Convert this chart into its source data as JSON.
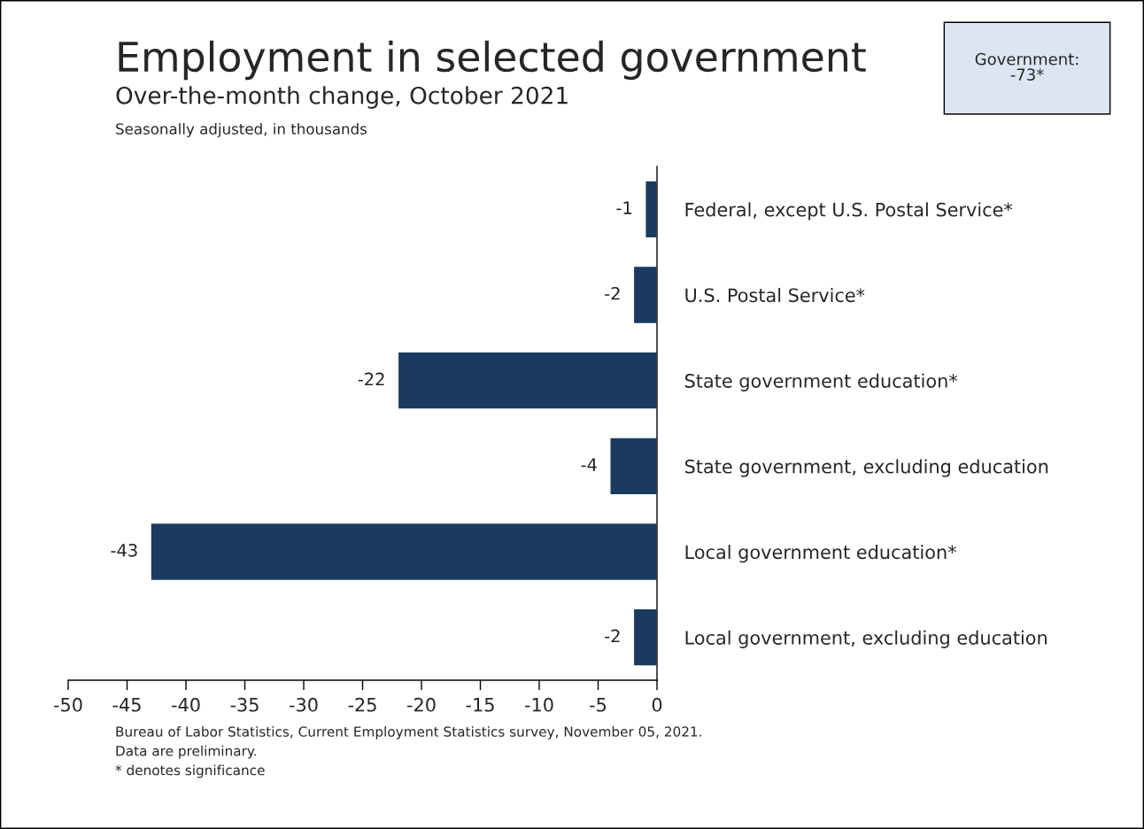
{
  "chart_data": {
    "type": "bar",
    "orientation": "horizontal",
    "title": "Employment in selected government",
    "subtitle": "Over-the-month change, October 2021",
    "annotations": [
      "Government:\n-73*",
      "Seasonally adjusted, in thousands",
      "Bureau of Labor Statistics, Current Employment Statistics survey, November 05, 2021.\nData are preliminary.\n* denotes significance"
    ],
    "categories": [
      "Federal, except U.S. Postal Service*",
      "U.S. Postal Service*",
      "State government education*",
      "State government, excluding education",
      "Local government education*",
      "Local government, excluding education"
    ],
    "values": [
      -1,
      -2,
      -22,
      -4,
      -43,
      -2
    ],
    "color": "#1a3a5f",
    "xlim": [
      -50,
      0
    ],
    "xticks": [
      -50,
      -45,
      -40,
      -35,
      -30,
      -25,
      -20,
      -15,
      -10,
      -5,
      0
    ],
    "data_labels": true,
    "grid": false,
    "legend": false
  }
}
